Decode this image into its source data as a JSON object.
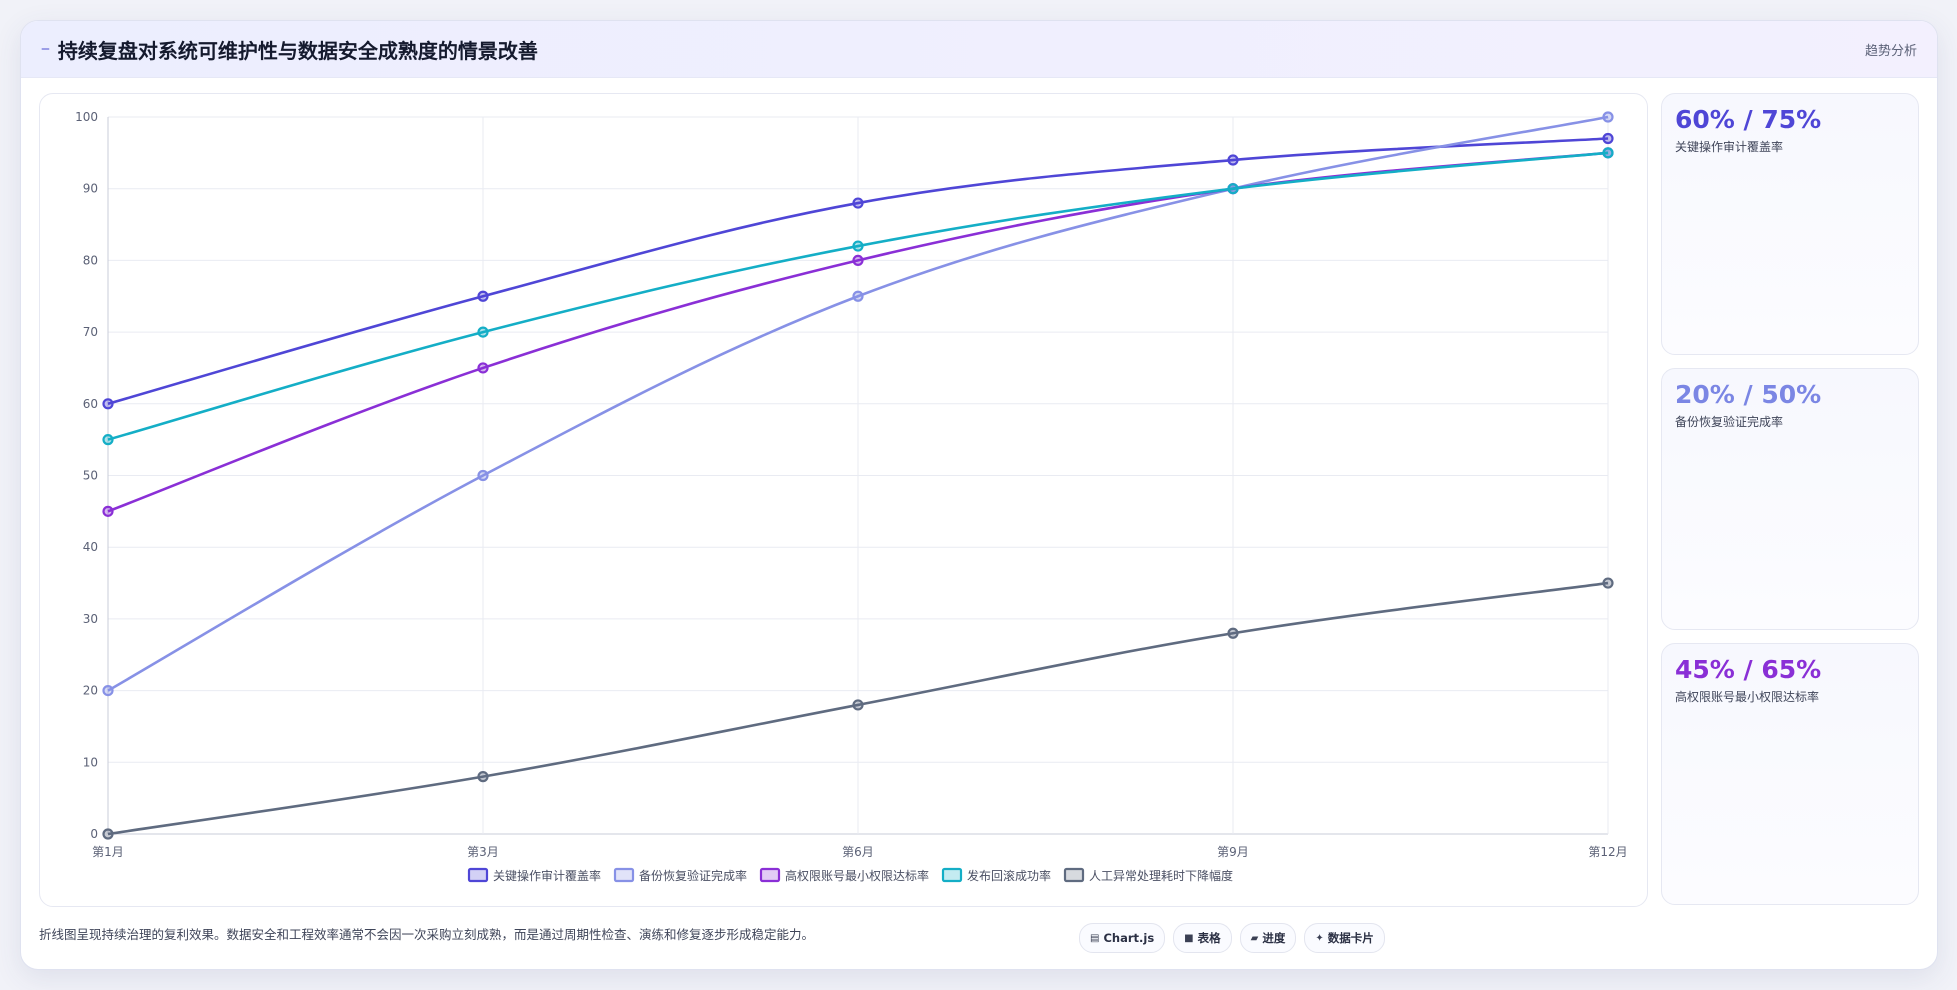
{
  "header": {
    "icon": "telescope-icon",
    "title": "持续复盘对系统可维护性与数据安全成熟度的情景改善",
    "link": "趋势分析"
  },
  "stats": [
    {
      "value": "60% / 75%",
      "label": "关键操作审计覆盖率",
      "color": "#4f46d6"
    },
    {
      "value": "20% / 50%",
      "label": "备份恢复验证完成率",
      "color": "#7b86e4"
    },
    {
      "value": "45% / 65%",
      "label": "高权限账号最小权限达标率",
      "color": "#8a2fd6"
    }
  ],
  "footer": {
    "note": "折线图呈现持续治理的复利效果。数据安全和工程效率通常不会因一次采购立刻成熟，而是通过周期性检查、演练和修复逐步形成稳定能力。",
    "chips": [
      {
        "icon": "chart-icon",
        "label": "Chart.js"
      },
      {
        "icon": "table-icon",
        "label": "表格"
      },
      {
        "icon": "progress-icon",
        "label": "进度"
      },
      {
        "icon": "card-icon",
        "label": "数据卡片"
      }
    ]
  },
  "chart_data": {
    "type": "line",
    "categories": [
      "第1月",
      "第3月",
      "第6月",
      "第9月",
      "第12月"
    ],
    "ylim": [
      0,
      100
    ],
    "yticks": [
      0,
      10,
      20,
      30,
      40,
      50,
      60,
      70,
      80,
      90,
      100
    ],
    "grid": true,
    "legend": "bottom",
    "series": [
      {
        "name": "关键操作审计覆盖率",
        "color": "#4f46d6",
        "values": [
          60,
          75,
          88,
          94,
          97
        ]
      },
      {
        "name": "备份恢复验证完成率",
        "color": "#8791e6",
        "values": [
          20,
          50,
          75,
          90,
          100
        ]
      },
      {
        "name": "高权限账号最小权限达标率",
        "color": "#8a2fd6",
        "values": [
          45,
          65,
          80,
          90,
          95
        ]
      },
      {
        "name": "发布回滚成功率",
        "color": "#14aec6",
        "values": [
          55,
          70,
          82,
          90,
          95
        ]
      },
      {
        "name": "人工异常处理耗时下降幅度",
        "color": "#5f6b80",
        "values": [
          0,
          8,
          18,
          28,
          35
        ]
      }
    ]
  }
}
